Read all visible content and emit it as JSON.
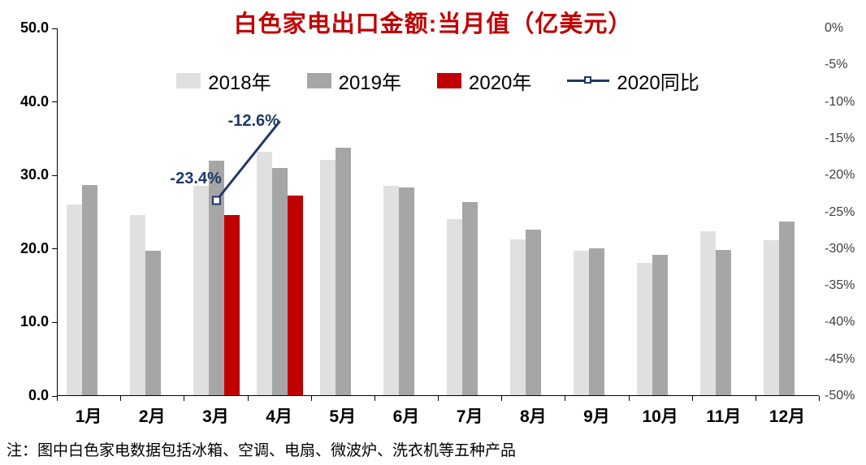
{
  "title": "白色家电出口金额:当月值（亿美元）",
  "note": "注：图中白色家电数据包括冰箱、空调、电扇、微波炉、洗衣机等五种产品",
  "colors": {
    "title": "#c00000",
    "axis_text": "#404040",
    "bar_2018": "#e0e0e0",
    "bar_2019": "#a6a6a6",
    "bar_2020": "#c00000",
    "yoy_line": "#1f3864"
  },
  "legend": [
    {
      "id": "2018",
      "label": "2018年",
      "type": "swatch",
      "color": "#e0e0e0"
    },
    {
      "id": "2019",
      "label": "2019年",
      "type": "swatch",
      "color": "#a6a6a6"
    },
    {
      "id": "2020",
      "label": "2020年",
      "type": "swatch",
      "color": "#c00000"
    },
    {
      "id": "yoy",
      "label": "2020同比",
      "type": "line",
      "color": "#1f3864"
    }
  ],
  "chart_data": {
    "type": "bar",
    "subtype": "grouped bars with yoy line on secondary axis",
    "title": "白色家电出口金额:当月值（亿美元）",
    "categories": [
      "1月",
      "2月",
      "3月",
      "4月",
      "5月",
      "6月",
      "7月",
      "8月",
      "9月",
      "10月",
      "11月",
      "12月"
    ],
    "series": [
      {
        "id": "2018",
        "name": "2018年",
        "axis": "left",
        "color": "#e0e0e0",
        "values": [
          26.0,
          24.6,
          28.5,
          33.2,
          32.1,
          28.5,
          24.0,
          21.2,
          19.7,
          18.0,
          22.3,
          21.1
        ]
      },
      {
        "id": "2019",
        "name": "2019年",
        "axis": "left",
        "color": "#a6a6a6",
        "values": [
          28.6,
          19.7,
          32.0,
          31.0,
          33.7,
          28.3,
          26.3,
          22.6,
          20.0,
          19.1,
          19.8,
          23.7
        ]
      },
      {
        "id": "2020",
        "name": "2020年",
        "axis": "left",
        "color": "#c00000",
        "values": [
          null,
          null,
          24.6,
          27.2,
          null,
          null,
          null,
          null,
          null,
          null,
          null,
          null
        ]
      },
      {
        "id": "yoy",
        "name": "2020同比",
        "axis": "right",
        "type": "line",
        "color": "#1f3864",
        "values": [
          null,
          null,
          -23.4,
          -12.6,
          null,
          null,
          null,
          null,
          null,
          null,
          null,
          null
        ],
        "labels": [
          null,
          null,
          "-23.4%",
          "-12.6%",
          null,
          null,
          null,
          null,
          null,
          null,
          null,
          null
        ]
      }
    ],
    "left_axis": {
      "min": 0,
      "max": 50,
      "ticks": [
        "0.0",
        "10.0",
        "20.0",
        "30.0",
        "40.0",
        "50.0"
      ]
    },
    "right_axis": {
      "min": -50,
      "max": 0,
      "ticks": [
        "0%",
        "-5%",
        "-10%",
        "-15%",
        "-20%",
        "-25%",
        "-30%",
        "-35%",
        "-40%",
        "-45%",
        "-50%"
      ]
    },
    "grid": false,
    "legend_position": "top"
  }
}
